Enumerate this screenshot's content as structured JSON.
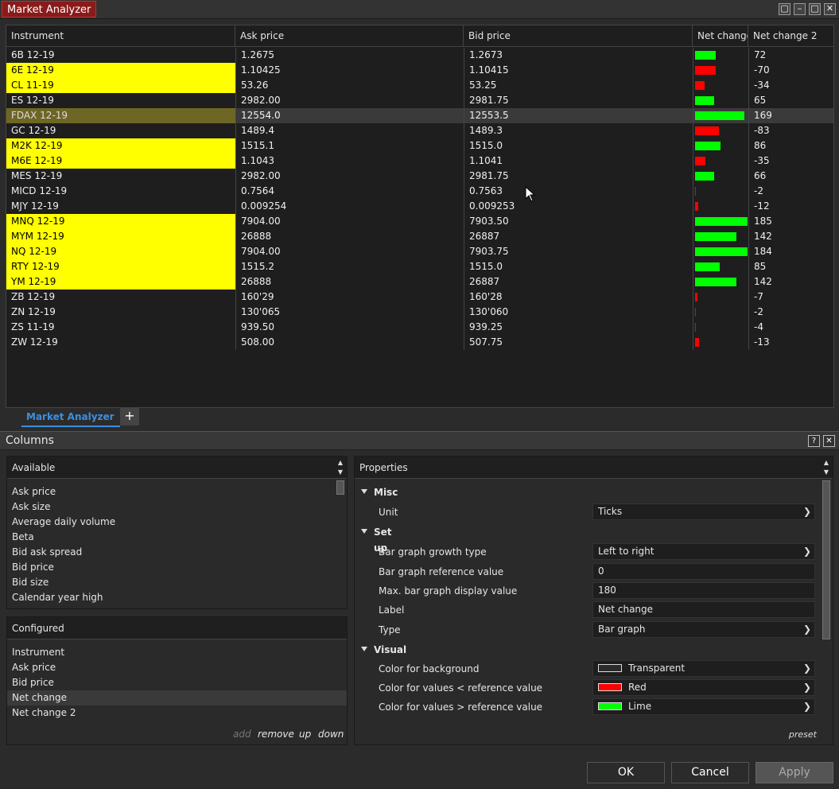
{
  "window": {
    "title": "Market Analyzer",
    "min_glyph": "–",
    "max_glyph": "□",
    "close_glyph": "✕",
    "restore_glyph": "▢"
  },
  "grid": {
    "headers": [
      "Instrument",
      "Ask price",
      "Bid price",
      "Net change",
      "Net change 2"
    ],
    "bar_max": 180,
    "rows": [
      {
        "instrument": "6B 12-19",
        "ask": "1.2675",
        "bid": "1.2673",
        "net": 72,
        "net2": "72",
        "hl": ""
      },
      {
        "instrument": "6E 12-19",
        "ask": "1.10425",
        "bid": "1.10415",
        "net": -70,
        "net2": "-70",
        "hl": "yellow"
      },
      {
        "instrument": "CL 11-19",
        "ask": "53.26",
        "bid": "53.25",
        "net": -34,
        "net2": "-34",
        "hl": "yellow"
      },
      {
        "instrument": "ES 12-19",
        "ask": "2982.00",
        "bid": "2981.75",
        "net": 65,
        "net2": "65",
        "hl": ""
      },
      {
        "instrument": "FDAX 12-19",
        "ask": "12554.0",
        "bid": "12553.5",
        "net": 169,
        "net2": "169",
        "hl": "olive",
        "selected": true
      },
      {
        "instrument": "GC 12-19",
        "ask": "1489.4",
        "bid": "1489.3",
        "net": -83,
        "net2": "-83",
        "hl": ""
      },
      {
        "instrument": "M2K 12-19",
        "ask": "1515.1",
        "bid": "1515.0",
        "net": 86,
        "net2": "86",
        "hl": "yellow"
      },
      {
        "instrument": "M6E 12-19",
        "ask": "1.1043",
        "bid": "1.1041",
        "net": -35,
        "net2": "-35",
        "hl": "yellow"
      },
      {
        "instrument": "MES 12-19",
        "ask": "2982.00",
        "bid": "2981.75",
        "net": 66,
        "net2": "66",
        "hl": ""
      },
      {
        "instrument": "MICD 12-19",
        "ask": "0.7564",
        "bid": "0.7563",
        "net": -2,
        "net2": "-2",
        "hl": ""
      },
      {
        "instrument": "MJY 12-19",
        "ask": "0.009254",
        "bid": "0.009253",
        "net": -12,
        "net2": "-12",
        "hl": ""
      },
      {
        "instrument": "MNQ 12-19",
        "ask": "7904.00",
        "bid": "7903.50",
        "net": 185,
        "net2": "185",
        "hl": "yellow"
      },
      {
        "instrument": "MYM 12-19",
        "ask": "26888",
        "bid": "26887",
        "net": 142,
        "net2": "142",
        "hl": "yellow"
      },
      {
        "instrument": "NQ 12-19",
        "ask": "7904.00",
        "bid": "7903.75",
        "net": 184,
        "net2": "184",
        "hl": "yellow"
      },
      {
        "instrument": "RTY 12-19",
        "ask": "1515.2",
        "bid": "1515.0",
        "net": 85,
        "net2": "85",
        "hl": "yellow"
      },
      {
        "instrument": "YM 12-19",
        "ask": "26888",
        "bid": "26887",
        "net": 142,
        "net2": "142",
        "hl": "yellow"
      },
      {
        "instrument": "ZB 12-19",
        "ask": "160'29",
        "bid": "160'28",
        "net": -7,
        "net2": "-7",
        "hl": ""
      },
      {
        "instrument": "ZN 12-19",
        "ask": "130'065",
        "bid": "130'060",
        "net": -2,
        "net2": "-2",
        "hl": ""
      },
      {
        "instrument": "ZS 11-19",
        "ask": "939.50",
        "bid": "939.25",
        "net": -4,
        "net2": "-4",
        "hl": ""
      },
      {
        "instrument": "ZW 12-19",
        "ask": "508.00",
        "bid": "507.75",
        "net": -13,
        "net2": "-13",
        "hl": ""
      }
    ]
  },
  "tabs": {
    "main": "Market Analyzer",
    "add": "+"
  },
  "columns_panel": {
    "title": "Columns",
    "help": "?",
    "close": "✕",
    "available": {
      "header": "Available",
      "items": [
        "Ask price",
        "Ask size",
        "Average daily volume",
        "Beta",
        "Bid ask spread",
        "Bid price",
        "Bid size",
        "Calendar year high"
      ]
    },
    "configured": {
      "header": "Configured",
      "items": [
        "Instrument",
        "Ask price",
        "Bid price",
        "Net change",
        "Net change 2"
      ],
      "selected_index": 3
    },
    "actions": {
      "add": "add",
      "remove": "remove",
      "up": "up",
      "down": "down"
    }
  },
  "properties": {
    "header": "Properties",
    "preset": "preset",
    "categories": {
      "misc": "Misc",
      "setup": "Set up",
      "visual": "Visual"
    },
    "unit": {
      "label": "Unit",
      "value": "Ticks"
    },
    "growth": {
      "label": "Bar graph growth type",
      "value": "Left to right"
    },
    "ref": {
      "label": "Bar graph reference value",
      "value": "0"
    },
    "max": {
      "label": "Max. bar graph display value",
      "value": "180"
    },
    "lbl": {
      "label": "Label",
      "value": "Net change"
    },
    "type": {
      "label": "Type",
      "value": "Bar graph"
    },
    "bg": {
      "label": "Color for background",
      "value": "Transparent",
      "color": "#2b2b2b"
    },
    "lt": {
      "label": "Color for values < reference value",
      "value": "Red",
      "color": "#ff0000"
    },
    "gt": {
      "label": "Color for values > reference value",
      "value": "Lime",
      "color": "#00ff00"
    }
  },
  "buttons": {
    "ok": "OK",
    "cancel": "Cancel",
    "apply": "Apply"
  },
  "colors": {
    "positive": "#00ff00",
    "negative": "#ff0000",
    "highlight": "#ffff00",
    "accent": "#3d8fe0"
  }
}
